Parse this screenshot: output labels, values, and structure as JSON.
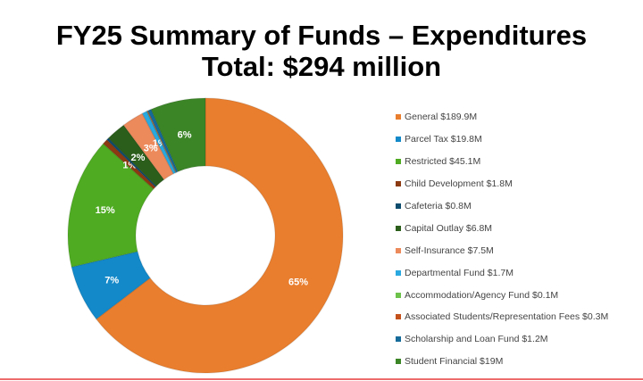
{
  "chart_data": {
    "type": "pie",
    "style": "donut",
    "title": "FY25 Summary of Funds – Expenditures",
    "subtitle": "Total: $294 million",
    "legend_position": "right",
    "unit": "$M",
    "series": [
      {
        "name": "General $189.9M",
        "value": 189.9,
        "label": "65%",
        "color": "#e97e2e"
      },
      {
        "name": "Parcel Tax $19.8M",
        "value": 19.8,
        "label": "7%",
        "color": "#1389c9"
      },
      {
        "name": "Restricted $45.1M",
        "value": 45.1,
        "label": "15%",
        "color": "#4fab22"
      },
      {
        "name": "Child Development $1.8M",
        "value": 1.8,
        "label": "1%",
        "color": "#8c3a12"
      },
      {
        "name": "Cafeteria $0.8M",
        "value": 0.8,
        "label": "",
        "color": "#0e4c6e"
      },
      {
        "name": "Capital Outlay $6.8M",
        "value": 6.8,
        "label": "2%",
        "color": "#2a5e1a"
      },
      {
        "name": "Self-Insurance $7.5M",
        "value": 7.5,
        "label": "3%",
        "color": "#ec8a5c"
      },
      {
        "name": "Departmental Fund $1.7M",
        "value": 1.7,
        "label": "1%",
        "color": "#29a9e0"
      },
      {
        "name": "Accommodation/Agency Fund $0.1M",
        "value": 0.1,
        "label": "",
        "color": "#6cc24a"
      },
      {
        "name": "Associated Students/Representation Fees $0.3M",
        "value": 0.3,
        "label": "",
        "color": "#c4511c"
      },
      {
        "name": "Scholarship and Loan Fund $1.2M",
        "value": 1.2,
        "label": "",
        "color": "#156c9a"
      },
      {
        "name": "Student Financial $19M",
        "value": 19,
        "label": "6%",
        "color": "#3b8527"
      }
    ]
  }
}
